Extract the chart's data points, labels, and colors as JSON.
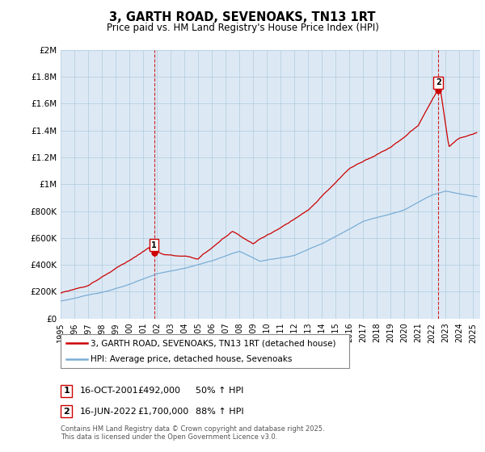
{
  "title": "3, GARTH ROAD, SEVENOAKS, TN13 1RT",
  "subtitle": "Price paid vs. HM Land Registry's House Price Index (HPI)",
  "footer": "Contains HM Land Registry data © Crown copyright and database right 2025.\nThis data is licensed under the Open Government Licence v3.0.",
  "ylim": [
    0,
    2000000
  ],
  "yticks": [
    0,
    200000,
    400000,
    600000,
    800000,
    1000000,
    1200000,
    1400000,
    1600000,
    1800000,
    2000000
  ],
  "ytick_labels": [
    "£0",
    "£200K",
    "£400K",
    "£600K",
    "£800K",
    "£1M",
    "£1.2M",
    "£1.4M",
    "£1.6M",
    "£1.8M",
    "£2M"
  ],
  "x_start_year": 1995,
  "x_end_year": 2025,
  "legend_line1": "3, GARTH ROAD, SEVENOAKS, TN13 1RT (detached house)",
  "legend_line2": "HPI: Average price, detached house, Sevenoaks",
  "line1_color": "#cc0000",
  "line2_color": "#7aadd4",
  "marker1_x": 2001.79,
  "marker1_price": 492000,
  "marker1_label": "1",
  "marker1_text": "16-OCT-2001",
  "marker1_price_str": "£492,000",
  "marker1_hpi": "50% ↑ HPI",
  "marker2_x": 2022.46,
  "marker2_price": 1700000,
  "marker2_label": "2",
  "marker2_text": "16-JUN-2022",
  "marker2_price_str": "£1,700,000",
  "marker2_hpi": "88% ↑ HPI",
  "background_color": "#dce9f5",
  "grid_color": "#b8cfe0",
  "vline_color": "#cc0000",
  "fig_bg": "#ffffff"
}
